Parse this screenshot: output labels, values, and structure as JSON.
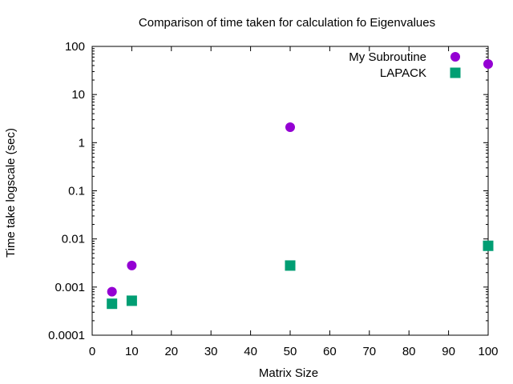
{
  "chart_data": {
    "type": "scatter",
    "title": "Comparison of time taken for calculation fo Eigenvalues",
    "xlabel": "Matrix Size",
    "ylabel": "Time take logscale (sec)",
    "xlim": [
      0,
      100
    ],
    "ylim": [
      0.0001,
      100
    ],
    "yscale": "log",
    "xticks": [
      0,
      10,
      20,
      30,
      40,
      50,
      60,
      70,
      80,
      90,
      100
    ],
    "xtick_labels": [
      "0",
      "10",
      "20",
      "30",
      "40",
      "50",
      "60",
      "70",
      "80",
      "90",
      "100"
    ],
    "yticks": [
      0.0001,
      0.001,
      0.01,
      0.1,
      1,
      10,
      100
    ],
    "ytick_labels": [
      "0.0001",
      "0.001",
      "0.01",
      "0.1",
      "1",
      "10",
      "100"
    ],
    "grid": false,
    "legend_position": "top-right",
    "series": [
      {
        "name": "My Subroutine",
        "marker": "circle",
        "color": "#9400d3",
        "x": [
          5,
          10,
          50,
          100
        ],
        "y": [
          0.0008,
          0.0028,
          2.1,
          43
        ]
      },
      {
        "name": "LAPACK",
        "marker": "square",
        "color": "#009e73",
        "x": [
          5,
          10,
          50,
          100
        ],
        "y": [
          0.00045,
          0.00052,
          0.0028,
          0.0072
        ]
      }
    ]
  }
}
